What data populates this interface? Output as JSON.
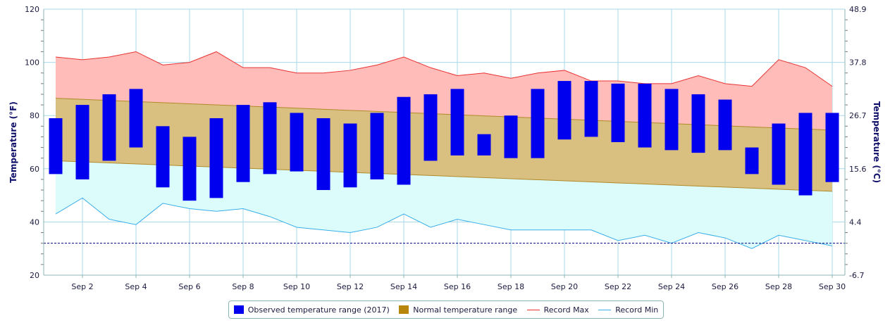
{
  "chart_data": {
    "type": "bar",
    "xlabel": "",
    "ylabel": "Temperature (°F)",
    "ylabel_right": "Temperature (°C)",
    "ylim": [
      20,
      120
    ],
    "yticks": [
      20,
      40,
      60,
      80,
      100,
      120
    ],
    "yticks_right": [
      "-6.7",
      "4.4",
      "15.6",
      "26.7",
      "37.8",
      "48.9"
    ],
    "x_tick_labels": [
      "Sep 2",
      "Sep 4",
      "Sep 6",
      "Sep 8",
      "Sep 10",
      "Sep 12",
      "Sep 14",
      "Sep 16",
      "Sep 18",
      "Sep 20",
      "Sep 22",
      "Sep 24",
      "Sep 26",
      "Sep 28",
      "Sep 30"
    ],
    "days": [
      1,
      2,
      3,
      4,
      5,
      6,
      7,
      8,
      9,
      10,
      11,
      12,
      13,
      14,
      15,
      16,
      17,
      18,
      19,
      20,
      21,
      22,
      23,
      24,
      25,
      26,
      27,
      28,
      29,
      30
    ],
    "series": [
      {
        "name": "Observed temperature range (2017)",
        "low": [
          58,
          56,
          63,
          68,
          53,
          48,
          49,
          55,
          58,
          59,
          52,
          53,
          56,
          54,
          63,
          65,
          65,
          64,
          64,
          71,
          72,
          70,
          68,
          67,
          66,
          67,
          58,
          54,
          50,
          55
        ],
        "high": [
          79,
          84,
          88,
          90,
          76,
          72,
          79,
          84,
          85,
          81,
          79,
          77,
          81,
          87,
          88,
          90,
          73,
          80,
          90,
          93,
          93,
          92,
          92,
          90,
          88,
          86,
          68,
          77,
          81,
          81
        ]
      },
      {
        "name": "Normal temperature range",
        "high_start": 86.5,
        "high_end": 74.5,
        "low_start": 63,
        "low_end": 51.5
      },
      {
        "name": "Record Max",
        "values": [
          102,
          101,
          102,
          104,
          99,
          100,
          104,
          98,
          98,
          96,
          96,
          97,
          99,
          102,
          98,
          95,
          96,
          94,
          96,
          97,
          93,
          93,
          92,
          92,
          95,
          92,
          91,
          101,
          98,
          91
        ]
      },
      {
        "name": "Record Min",
        "values": [
          43,
          49,
          41,
          39,
          47,
          45,
          44,
          45,
          42,
          38,
          37,
          36,
          38,
          43,
          38,
          41,
          39,
          37,
          37,
          37,
          37,
          33,
          35,
          32,
          36,
          34,
          30,
          35,
          33,
          31
        ]
      }
    ],
    "reference_line": 32,
    "legend_position": "bottom",
    "grid": true,
    "colors": {
      "observed": "#0000ee",
      "normal_fill": "#d9bf80",
      "normal_line": "#b08a2a",
      "record_max_fill": "#ffbcb8",
      "record_max_line": "#e83232",
      "record_min_fill": "#dcfcfc",
      "record_min_line": "#3aaee8",
      "freezing_line": "#000080",
      "grid": "#a8d8e8",
      "legend_normal_swatch": "#b8860b"
    }
  }
}
